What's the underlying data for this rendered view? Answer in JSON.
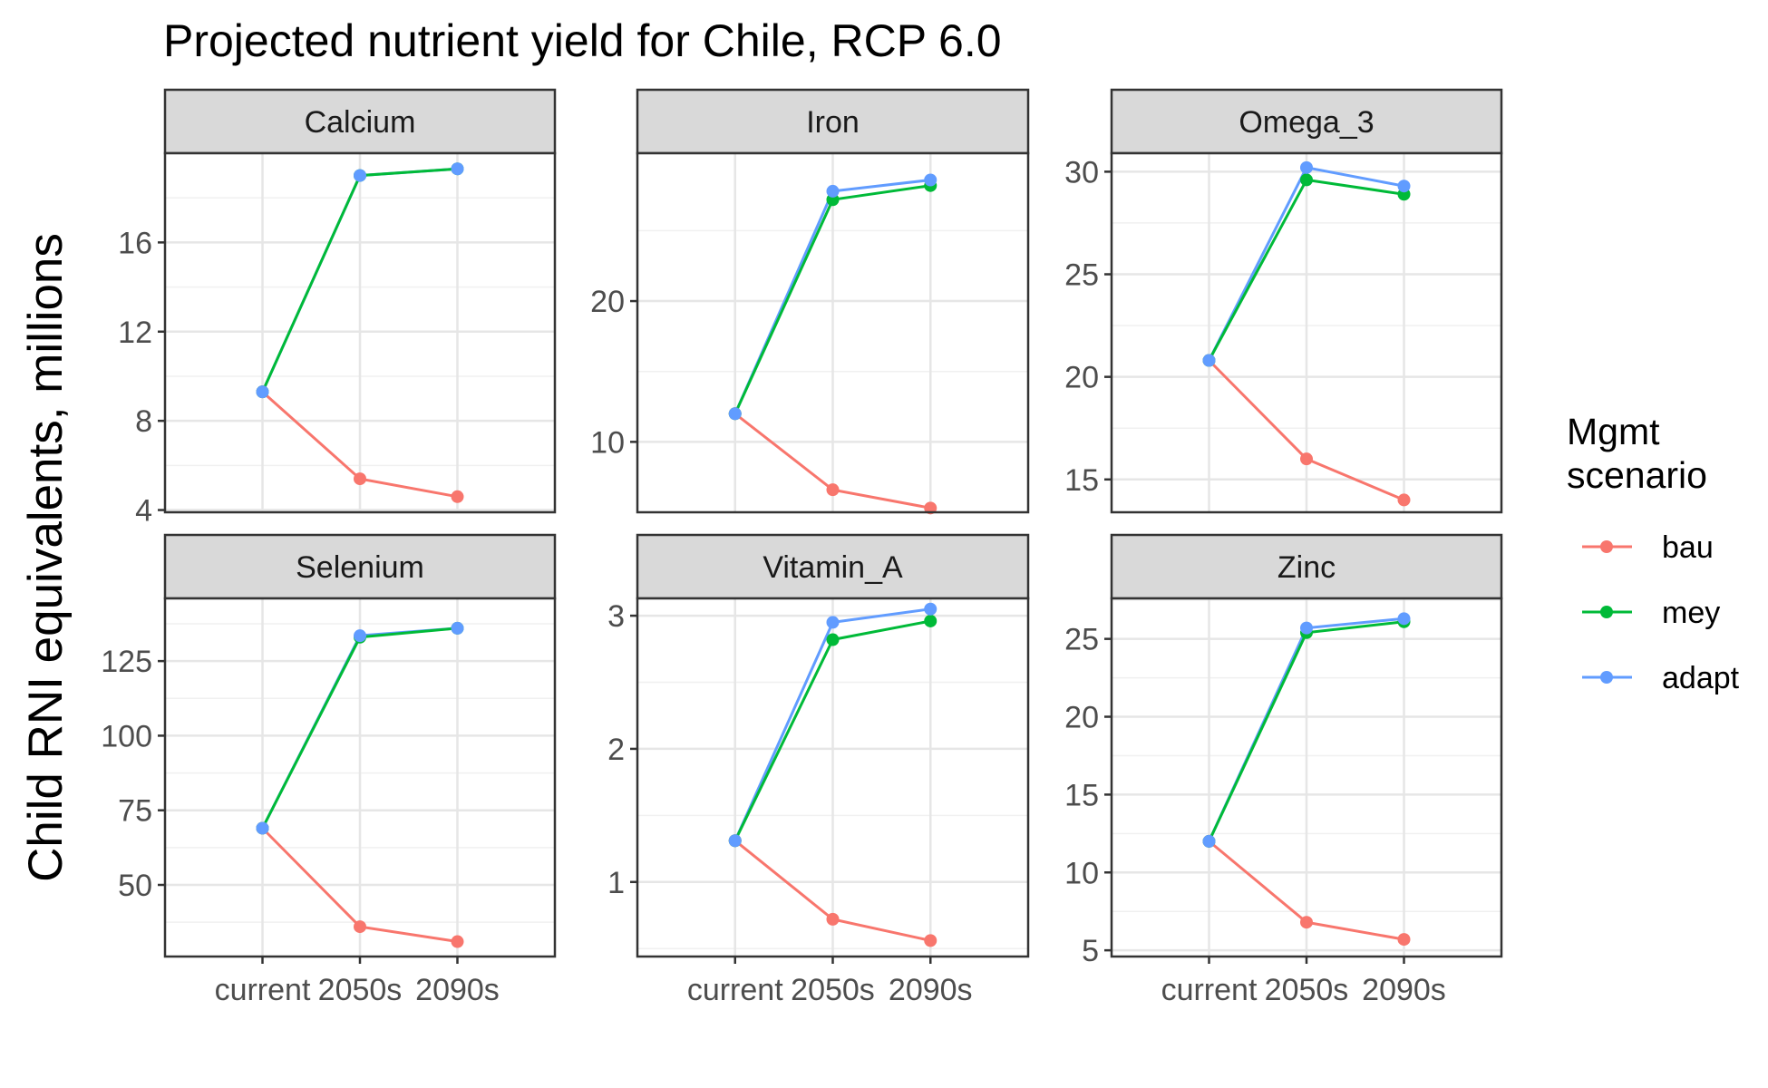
{
  "chart_data": {
    "type": "line",
    "title": "Projected nutrient yield for Chile, RCP 6.0",
    "ylabel": "Child RNI equivalents, millions",
    "xlabel": "",
    "categories": [
      "current",
      "2050s",
      "2090s"
    ],
    "legend": {
      "title_lines": [
        "Mgmt",
        "scenario"
      ],
      "placement": "right",
      "entries": [
        {
          "name": "bau",
          "color": "#F8766D"
        },
        {
          "name": "mey",
          "color": "#00BA38"
        },
        {
          "name": "adapt",
          "color": "#619CFF"
        }
      ]
    },
    "grid": true,
    "facets": [
      {
        "name": "Calcium",
        "ylim": [
          3.9,
          20.0
        ],
        "yticks": [
          4,
          8,
          12,
          16
        ],
        "ytick_labels": [
          "4",
          "8",
          "12",
          "16"
        ],
        "series": [
          {
            "name": "bau",
            "values": [
              9.3,
              5.4,
              4.6
            ]
          },
          {
            "name": "mey",
            "values": [
              9.3,
              19.0,
              19.3
            ]
          },
          {
            "name": "adapt",
            "values": [
              9.3,
              19.0,
              19.3
            ]
          }
        ]
      },
      {
        "name": "Iron",
        "ylim": [
          5.0,
          30.5
        ],
        "yticks": [
          10,
          20
        ],
        "ytick_labels": [
          "10",
          "20"
        ],
        "series": [
          {
            "name": "bau",
            "values": [
              12.0,
              6.6,
              5.3
            ]
          },
          {
            "name": "mey",
            "values": [
              12.0,
              27.2,
              28.2
            ]
          },
          {
            "name": "adapt",
            "values": [
              12.0,
              27.8,
              28.6
            ]
          }
        ]
      },
      {
        "name": "Omega_3",
        "ylim": [
          13.4,
          30.9
        ],
        "yticks": [
          15,
          20,
          25,
          30
        ],
        "ytick_labels": [
          "15",
          "20",
          "25",
          "30"
        ],
        "series": [
          {
            "name": "bau",
            "values": [
              20.8,
              16.0,
              14.0
            ]
          },
          {
            "name": "mey",
            "values": [
              20.8,
              29.6,
              28.9
            ]
          },
          {
            "name": "adapt",
            "values": [
              20.8,
              30.2,
              29.3
            ]
          }
        ]
      },
      {
        "name": "Selenium",
        "ylim": [
          26.0,
          146.0
        ],
        "yticks": [
          50,
          75,
          100,
          125
        ],
        "ytick_labels": [
          "50",
          "75",
          "100",
          "125"
        ],
        "series": [
          {
            "name": "bau",
            "values": [
              69.0,
              36.0,
              31.0
            ]
          },
          {
            "name": "mey",
            "values": [
              69.0,
              133.0,
              136.0
            ]
          },
          {
            "name": "adapt",
            "values": [
              69.0,
              133.5,
              136.0
            ]
          }
        ]
      },
      {
        "name": "Vitamin_A",
        "ylim": [
          0.44,
          3.13
        ],
        "yticks": [
          1,
          2,
          3
        ],
        "ytick_labels": [
          "1",
          "2",
          "3"
        ],
        "series": [
          {
            "name": "bau",
            "values": [
              1.31,
              0.72,
              0.56
            ]
          },
          {
            "name": "mey",
            "values": [
              1.31,
              2.82,
              2.96
            ]
          },
          {
            "name": "adapt",
            "values": [
              1.31,
              2.95,
              3.05
            ]
          }
        ]
      },
      {
        "name": "Zinc",
        "ylim": [
          4.6,
          27.6
        ],
        "yticks": [
          5,
          10,
          15,
          20,
          25
        ],
        "ytick_labels": [
          "5",
          "10",
          "15",
          "20",
          "25"
        ],
        "series": [
          {
            "name": "bau",
            "values": [
              12.0,
              6.8,
              5.7
            ]
          },
          {
            "name": "mey",
            "values": [
              12.0,
              25.4,
              26.1
            ]
          },
          {
            "name": "adapt",
            "values": [
              12.0,
              25.7,
              26.3
            ]
          }
        ]
      }
    ]
  }
}
